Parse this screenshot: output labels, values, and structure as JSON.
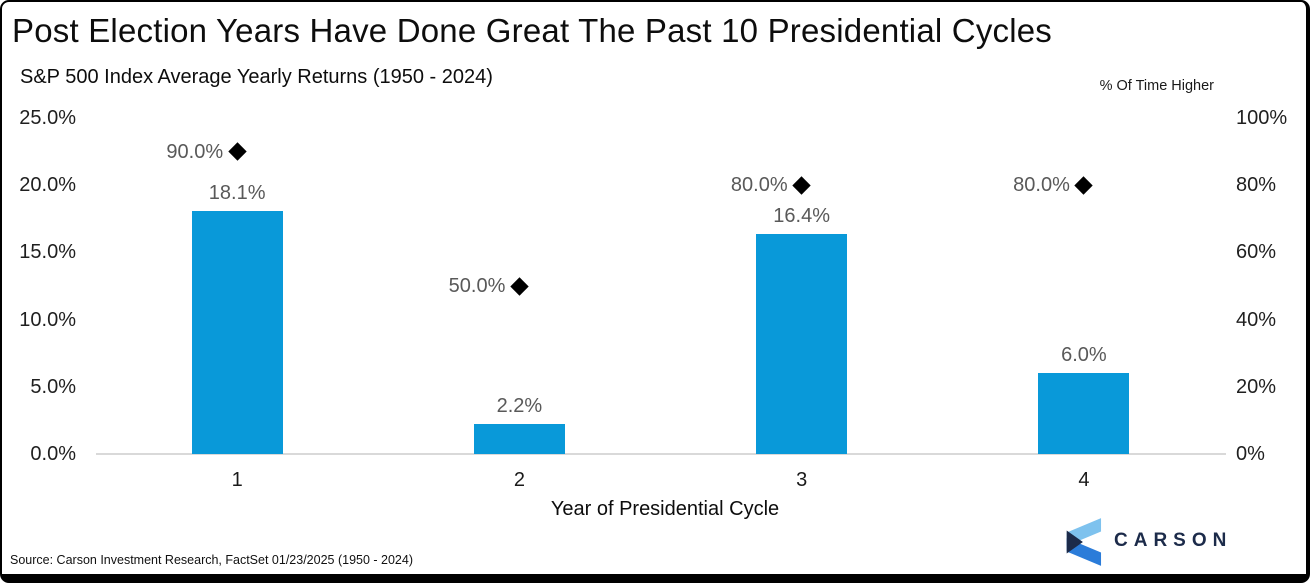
{
  "header": {
    "title": "Post Election Years Have Done Great The Past 10 Presidential Cycles",
    "subtitle": "S&P 500 Index Average Yearly Returns (1950 - 2024)",
    "right_axis_title": "% Of Time Higher"
  },
  "chart_data": {
    "type": "bar",
    "categories": [
      "1",
      "2",
      "3",
      "4"
    ],
    "series": [
      {
        "name": "S&P 500 Index Average Yearly Return",
        "type": "bar",
        "axis": "left",
        "color": "#0999d9",
        "values": [
          18.1,
          2.2,
          16.4,
          6.0
        ],
        "labels": [
          "18.1%",
          "2.2%",
          "16.4%",
          "6.0%"
        ]
      },
      {
        "name": "% Of Time Higher",
        "type": "scatter-diamond",
        "axis": "right",
        "color": "#000000",
        "values": [
          90.0,
          50.0,
          80.0,
          80.0
        ],
        "labels": [
          "90.0%",
          "50.0%",
          "80.0%",
          "80.0%"
        ]
      }
    ],
    "title": "Post Election Years Have Done Great The Past 10 Presidential Cycles",
    "subtitle": "S&P 500 Index Average Yearly Returns (1950 - 2024)",
    "xlabel": "Year of Presidential Cycle",
    "left_axis": {
      "min": 0,
      "max": 25,
      "tick_values": [
        25,
        20,
        15,
        10,
        5,
        0
      ],
      "tick_labels": [
        "25.0%",
        "20.0%",
        "15.0%",
        "10.0%",
        "5.0%",
        "0.0%"
      ]
    },
    "right_axis": {
      "title": "% Of Time Higher",
      "min": 0,
      "max": 100,
      "tick_values": [
        100,
        80,
        60,
        40,
        20,
        0
      ],
      "tick_labels": [
        "100%",
        "80%",
        "60%",
        "40%",
        "20%",
        "0%"
      ]
    },
    "grid": "baseline-only",
    "legend": "none"
  },
  "footer": {
    "source": "Source: Carson Investment Research, FactSet 01/23/2025 (1950 - 2024)",
    "logo_text": "CARSON"
  },
  "colors": {
    "bar": "#0999d9",
    "marker": "#000000",
    "data_label": "#595959",
    "axis_label": "#1f1f1f",
    "baseline": "#d9d9d9",
    "logo_navy": "#1c2b4a",
    "logo_light_blue": "#7ec2ee",
    "logo_blue": "#2b7cd9"
  }
}
